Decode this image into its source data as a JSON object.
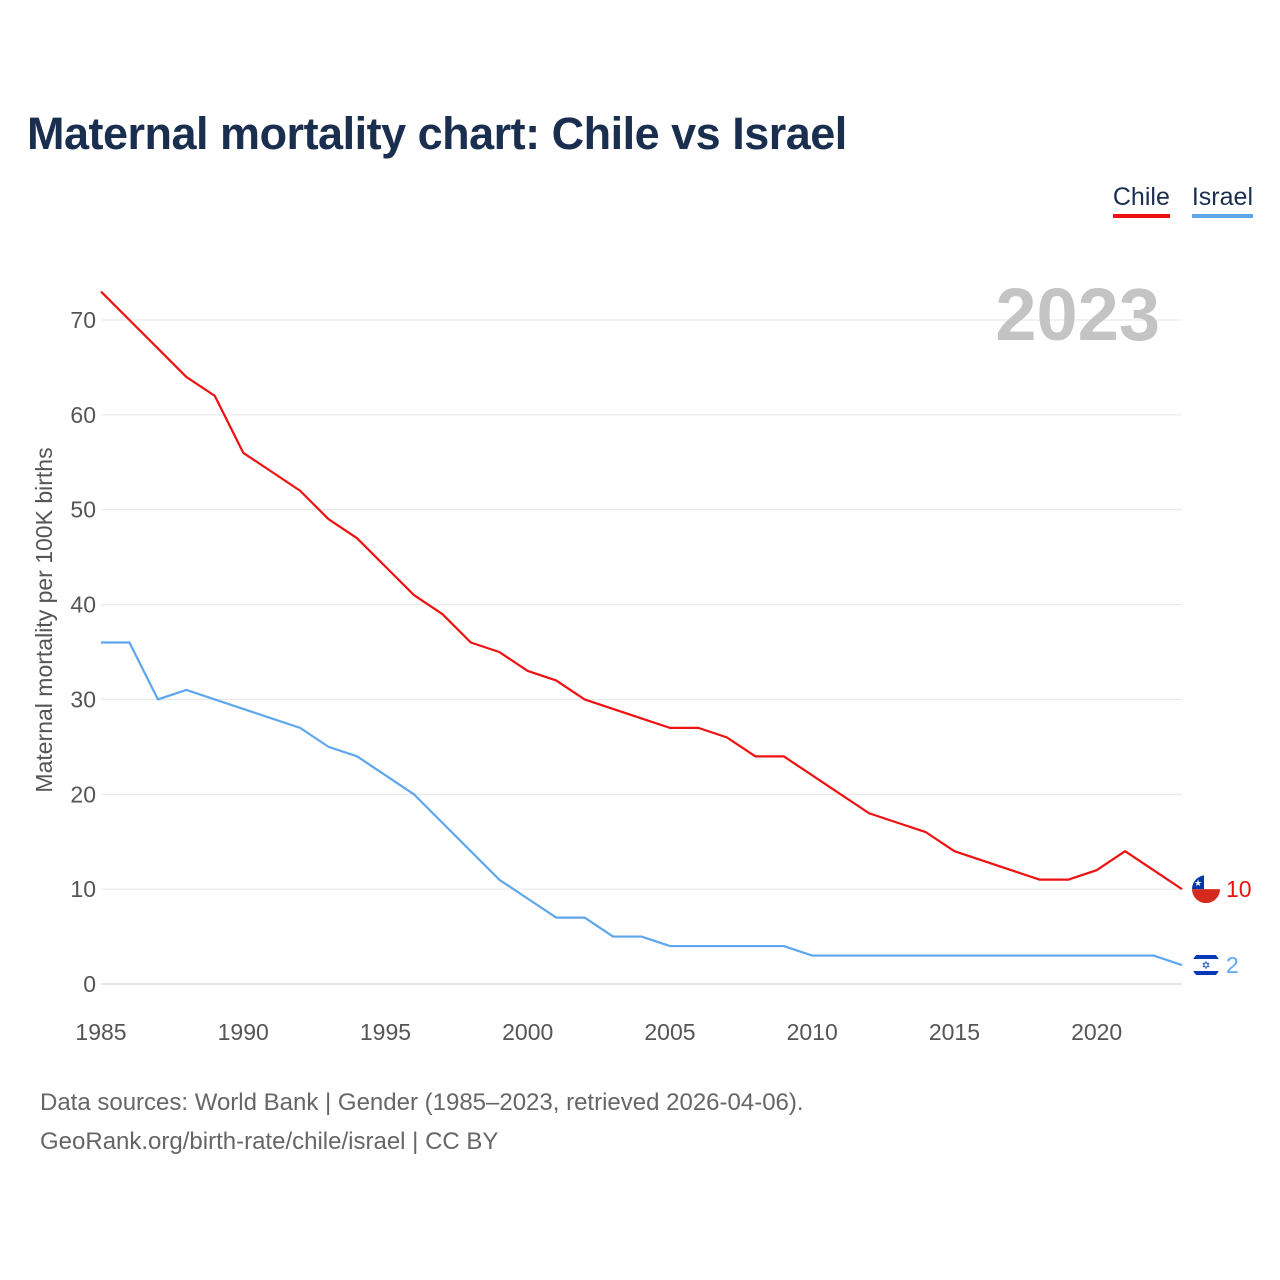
{
  "title": "Maternal mortality chart: Chile vs Israel",
  "year_label": "2023",
  "footer": {
    "line1": "Data sources: World Bank | Gender (1985–2023, retrieved 2026-04-06).",
    "line2": "GeoRank.org/birth-rate/chile/israel | CC BY"
  },
  "chart_data": {
    "type": "line",
    "title": "Maternal mortality chart: Chile vs Israel",
    "xlabel": "",
    "ylabel": "Maternal mortality per 100K births",
    "xlim": [
      1985,
      2023
    ],
    "ylim": [
      0,
      70
    ],
    "xticks": [
      "1985",
      "1990",
      "1995",
      "2000",
      "2005",
      "2010",
      "2015",
      "2020"
    ],
    "yticks": [
      "0",
      "10",
      "20",
      "30",
      "40",
      "50",
      "60",
      "70"
    ],
    "grid": true,
    "legend_position": "top-right",
    "x": [
      1985,
      1986,
      1987,
      1988,
      1989,
      1990,
      1991,
      1992,
      1993,
      1994,
      1995,
      1996,
      1997,
      1998,
      1999,
      2000,
      2001,
      2002,
      2003,
      2004,
      2005,
      2006,
      2007,
      2008,
      2009,
      2010,
      2011,
      2012,
      2013,
      2014,
      2015,
      2016,
      2017,
      2018,
      2019,
      2020,
      2021,
      2022,
      2023
    ],
    "series": [
      {
        "name": "Chile",
        "color": "#ee1111",
        "end_label": "10",
        "values": [
          73,
          70,
          67,
          64,
          62,
          56,
          54,
          52,
          49,
          47,
          44,
          41,
          39,
          36,
          35,
          33,
          32,
          30,
          29,
          28,
          27,
          27,
          26,
          24,
          24,
          22,
          20,
          18,
          17,
          16,
          14,
          13,
          12,
          11,
          11,
          12,
          14,
          12,
          10
        ]
      },
      {
        "name": "Israel",
        "color": "#5ea6ee",
        "end_label": "2",
        "values": [
          36,
          36,
          30,
          31,
          30,
          29,
          28,
          27,
          25,
          24,
          22,
          20,
          17,
          14,
          11,
          9,
          7,
          7,
          5,
          5,
          4,
          4,
          4,
          4,
          4,
          3,
          3,
          3,
          3,
          3,
          3,
          3,
          3,
          3,
          3,
          3,
          3,
          3,
          2
        ]
      }
    ]
  }
}
